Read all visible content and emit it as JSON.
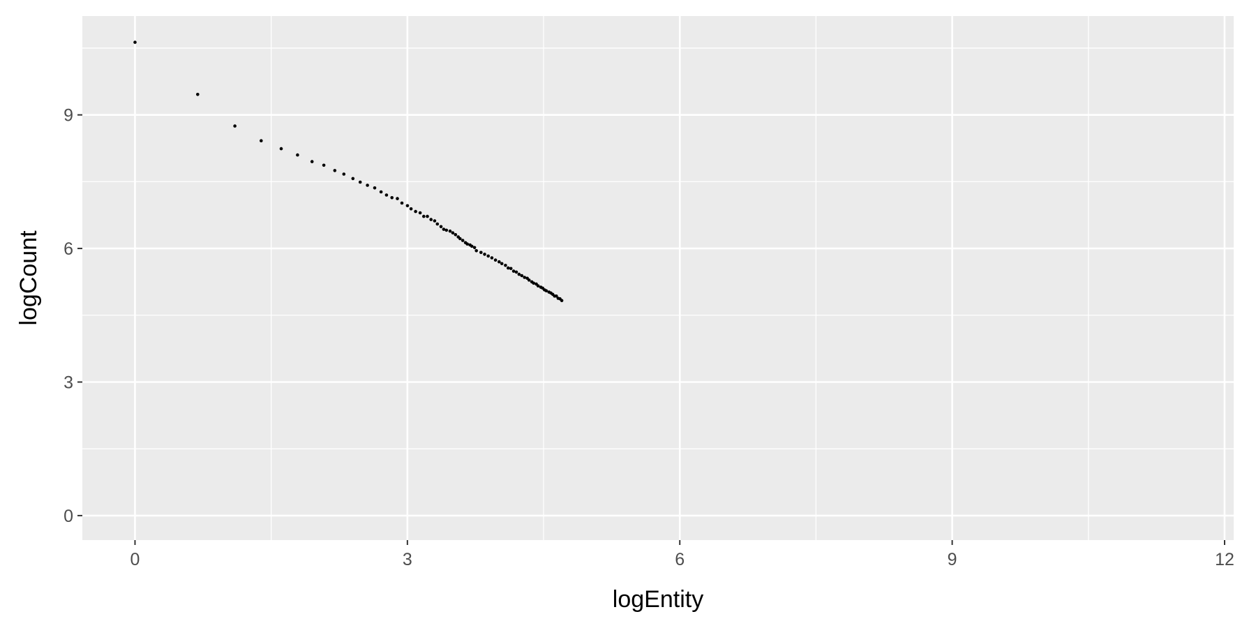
{
  "chart_data": {
    "type": "scatter",
    "title": "",
    "xlabel": "logEntity",
    "ylabel": "logCount",
    "xlim": [
      -0.58,
      12.1
    ],
    "ylim": [
      -0.55,
      11.22
    ],
    "x_ticks": [
      0,
      3,
      6,
      9,
      12
    ],
    "x_tick_labels": [
      "0",
      "3",
      "6",
      "9",
      "12"
    ],
    "y_ticks": [
      0,
      3,
      6,
      9
    ],
    "y_tick_labels": [
      "0",
      "3",
      "6",
      "9"
    ],
    "grid": true,
    "legend": "none",
    "panel_color": "#ebebeb",
    "grid_color": "#ffffff",
    "point_color": "#000000",
    "points": [
      [
        0.0,
        10.63
      ],
      [
        0.69,
        9.46
      ],
      [
        1.1,
        8.75
      ],
      [
        1.39,
        8.42
      ],
      [
        1.61,
        8.24
      ],
      [
        1.79,
        8.1
      ],
      [
        1.95,
        7.95
      ],
      [
        2.08,
        7.87
      ],
      [
        2.2,
        7.75
      ],
      [
        2.3,
        7.67
      ],
      [
        2.4,
        7.57
      ],
      [
        2.48,
        7.49
      ],
      [
        2.56,
        7.42
      ],
      [
        2.64,
        7.36
      ],
      [
        2.71,
        7.27
      ],
      [
        2.77,
        7.2
      ],
      [
        2.83,
        7.14
      ],
      [
        2.89,
        7.12
      ],
      [
        2.94,
        7.02
      ],
      [
        3.0,
        6.96
      ],
      [
        3.04,
        6.89
      ],
      [
        3.09,
        6.83
      ],
      [
        3.14,
        6.8
      ],
      [
        3.18,
        6.72
      ],
      [
        3.22,
        6.72
      ],
      [
        3.26,
        6.65
      ],
      [
        3.3,
        6.62
      ],
      [
        3.33,
        6.55
      ],
      [
        3.37,
        6.49
      ],
      [
        3.4,
        6.43
      ],
      [
        3.43,
        6.41
      ],
      [
        3.47,
        6.39
      ],
      [
        3.5,
        6.35
      ],
      [
        3.53,
        6.31
      ],
      [
        3.56,
        6.26
      ],
      [
        3.58,
        6.22
      ],
      [
        3.61,
        6.18
      ],
      [
        3.64,
        6.13
      ],
      [
        3.66,
        6.1
      ],
      [
        3.69,
        6.08
      ],
      [
        3.71,
        6.05
      ],
      [
        3.74,
        6.02
      ],
      [
        3.76,
        5.95
      ],
      [
        3.81,
        5.91
      ],
      [
        3.85,
        5.87
      ],
      [
        3.89,
        5.83
      ],
      [
        3.93,
        5.79
      ],
      [
        3.97,
        5.74
      ],
      [
        4.01,
        5.7
      ],
      [
        4.04,
        5.66
      ],
      [
        4.08,
        5.62
      ],
      [
        4.11,
        5.56
      ],
      [
        4.14,
        5.55
      ],
      [
        4.17,
        5.49
      ],
      [
        4.2,
        5.47
      ],
      [
        4.23,
        5.42
      ],
      [
        4.26,
        5.39
      ],
      [
        4.29,
        5.35
      ],
      [
        4.32,
        5.33
      ],
      [
        4.34,
        5.29
      ],
      [
        4.37,
        5.25
      ],
      [
        4.39,
        5.22
      ],
      [
        4.42,
        5.2
      ],
      [
        4.44,
        5.16
      ],
      [
        4.47,
        5.13
      ],
      [
        4.49,
        5.11
      ],
      [
        4.51,
        5.07
      ],
      [
        4.53,
        5.05
      ],
      [
        4.56,
        5.02
      ],
      [
        4.58,
        5.0
      ],
      [
        4.6,
        4.97
      ],
      [
        4.62,
        4.93
      ],
      [
        4.64,
        4.93
      ],
      [
        4.66,
        4.88
      ],
      [
        4.68,
        4.87
      ],
      [
        4.7,
        4.83
      ]
    ]
  }
}
